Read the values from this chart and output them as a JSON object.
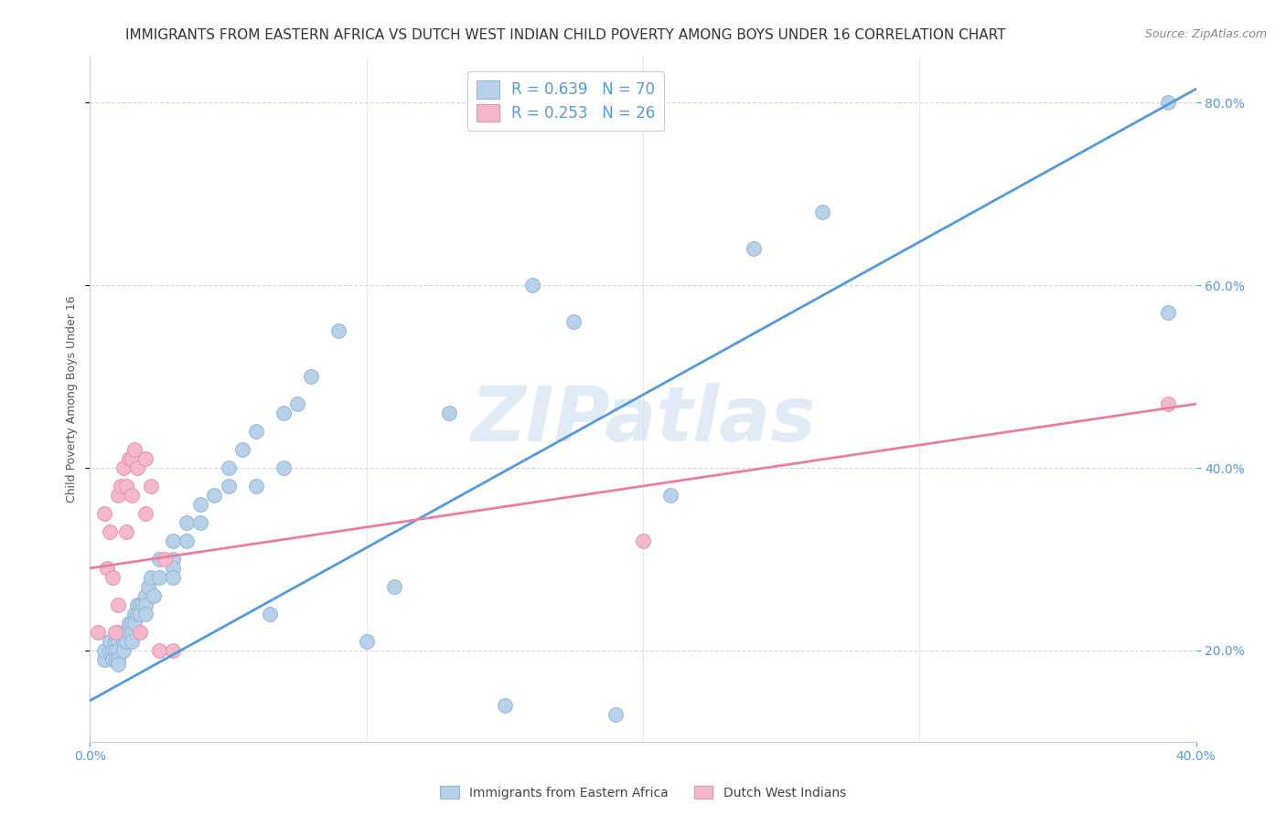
{
  "title": "IMMIGRANTS FROM EASTERN AFRICA VS DUTCH WEST INDIAN CHILD POVERTY AMONG BOYS UNDER 16 CORRELATION CHART",
  "source": "Source: ZipAtlas.com",
  "ylabel": "Child Poverty Among Boys Under 16",
  "xlim": [
    0.0,
    0.4
  ],
  "ylim": [
    0.1,
    0.85
  ],
  "xticks": [
    0.0,
    0.4
  ],
  "yticks": [
    0.2,
    0.4,
    0.6,
    0.8
  ],
  "blue_R": 0.639,
  "blue_N": 70,
  "pink_R": 0.253,
  "pink_N": 26,
  "blue_color": "#b8d0e8",
  "blue_edge": "#90b8d8",
  "pink_color": "#f4b8cc",
  "pink_edge": "#e890b0",
  "blue_line_color": "#5599dd",
  "pink_line_color": "#e87fa0",
  "right_tick_color": "#5599dd",
  "legend_text_color": "#5599dd",
  "title_fontsize": 11,
  "source_fontsize": 9,
  "axis_label_fontsize": 9,
  "tick_fontsize": 10,
  "legend_fontsize": 12,
  "watermark": "ZIPatlas",
  "watermark_color": "#ccdff0",
  "blue_x": [
    0.005,
    0.005,
    0.007,
    0.007,
    0.008,
    0.008,
    0.009,
    0.009,
    0.009,
    0.01,
    0.01,
    0.01,
    0.01,
    0.01,
    0.012,
    0.012,
    0.013,
    0.013,
    0.014,
    0.014,
    0.015,
    0.015,
    0.015,
    0.016,
    0.016,
    0.017,
    0.017,
    0.018,
    0.018,
    0.019,
    0.02,
    0.02,
    0.02,
    0.021,
    0.022,
    0.023,
    0.025,
    0.025,
    0.03,
    0.03,
    0.03,
    0.03,
    0.035,
    0.035,
    0.04,
    0.04,
    0.045,
    0.05,
    0.05,
    0.055,
    0.06,
    0.06,
    0.065,
    0.07,
    0.07,
    0.075,
    0.08,
    0.09,
    0.1,
    0.11,
    0.13,
    0.15,
    0.16,
    0.175,
    0.19,
    0.21,
    0.24,
    0.265,
    0.39,
    0.39
  ],
  "blue_y": [
    0.19,
    0.2,
    0.2,
    0.21,
    0.2,
    0.19,
    0.21,
    0.2,
    0.19,
    0.22,
    0.21,
    0.2,
    0.19,
    0.185,
    0.21,
    0.2,
    0.22,
    0.21,
    0.23,
    0.22,
    0.23,
    0.22,
    0.21,
    0.24,
    0.23,
    0.25,
    0.24,
    0.25,
    0.24,
    0.25,
    0.26,
    0.25,
    0.24,
    0.27,
    0.28,
    0.26,
    0.3,
    0.28,
    0.32,
    0.3,
    0.29,
    0.28,
    0.34,
    0.32,
    0.36,
    0.34,
    0.37,
    0.4,
    0.38,
    0.42,
    0.44,
    0.38,
    0.24,
    0.46,
    0.4,
    0.47,
    0.5,
    0.55,
    0.21,
    0.27,
    0.46,
    0.14,
    0.6,
    0.56,
    0.13,
    0.37,
    0.64,
    0.68,
    0.57,
    0.8
  ],
  "pink_x": [
    0.003,
    0.005,
    0.006,
    0.007,
    0.008,
    0.009,
    0.01,
    0.01,
    0.011,
    0.012,
    0.013,
    0.013,
    0.014,
    0.015,
    0.015,
    0.016,
    0.017,
    0.018,
    0.02,
    0.02,
    0.022,
    0.025,
    0.027,
    0.03,
    0.2,
    0.39
  ],
  "pink_y": [
    0.22,
    0.35,
    0.29,
    0.33,
    0.28,
    0.22,
    0.37,
    0.25,
    0.38,
    0.4,
    0.38,
    0.33,
    0.41,
    0.41,
    0.37,
    0.42,
    0.4,
    0.22,
    0.41,
    0.35,
    0.38,
    0.2,
    0.3,
    0.2,
    0.32,
    0.47
  ],
  "blue_line_x": [
    0.0,
    0.4
  ],
  "blue_line_y": [
    0.145,
    0.815
  ],
  "pink_line_x": [
    0.0,
    0.4
  ],
  "pink_line_y": [
    0.29,
    0.47
  ],
  "bottom_legend_labels": [
    "Immigrants from Eastern Africa",
    "Dutch West Indians"
  ],
  "hgrid_color": "#d0d8e8",
  "vgrid_color": "#d8e0ec",
  "spine_color": "#cccccc"
}
